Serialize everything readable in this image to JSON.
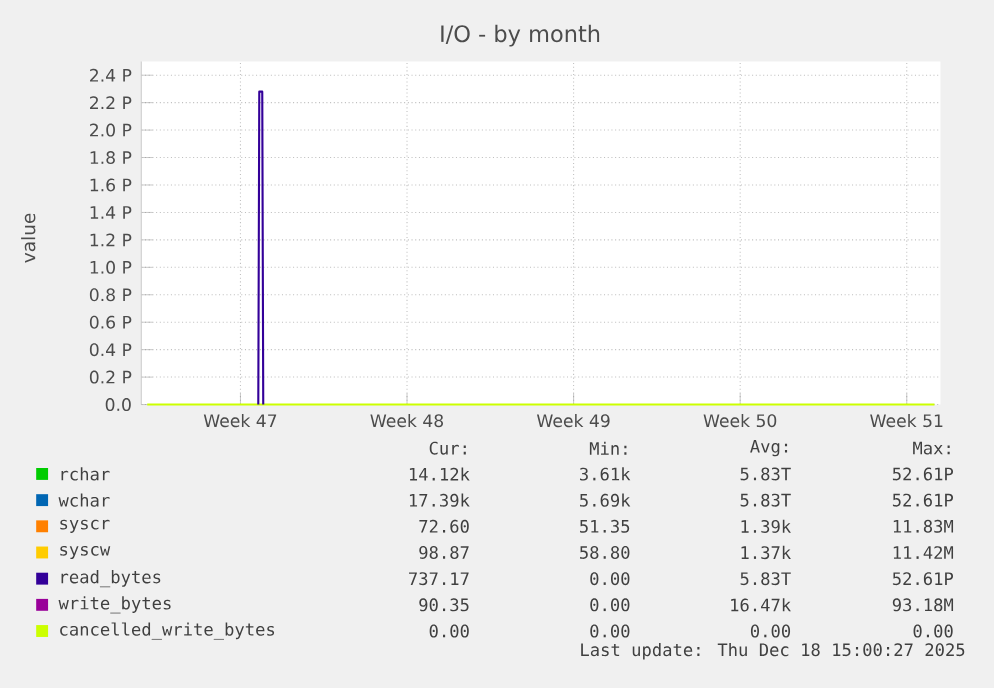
{
  "chart_data": {
    "type": "line",
    "title": "I/O - by month",
    "ylabel": "value",
    "xlim": [
      "2025-11-16T08:00",
      "2025-12-19T22:00"
    ],
    "xticks": [
      {
        "value": "2025-11-20T12:00",
        "label": "Week 47"
      },
      {
        "value": "2025-11-27T12:00",
        "label": "Week 48"
      },
      {
        "value": "2025-12-04T12:00",
        "label": "Week 49"
      },
      {
        "value": "2025-12-11T12:00",
        "label": "Week 50"
      },
      {
        "value": "2025-12-18T12:00",
        "label": "Week 51"
      }
    ],
    "ylim": [
      0,
      2.5
    ],
    "yticks": [
      {
        "value": 0,
        "label": "0.0"
      },
      {
        "value": 0.2,
        "label": "0.2 P"
      },
      {
        "value": 0.4,
        "label": "0.4 P"
      },
      {
        "value": 0.6,
        "label": "0.6 P"
      },
      {
        "value": 0.8,
        "label": "0.8 P"
      },
      {
        "value": 1.0,
        "label": "1.0 P"
      },
      {
        "value": 1.2,
        "label": "1.2 P"
      },
      {
        "value": 1.4,
        "label": "1.4 P"
      },
      {
        "value": 1.6,
        "label": "1.6 P"
      },
      {
        "value": 1.8,
        "label": "1.8 P"
      },
      {
        "value": 2.0,
        "label": "2.0 P"
      },
      {
        "value": 2.2,
        "label": "2.2 P"
      },
      {
        "value": 2.4,
        "label": "2.4 P"
      }
    ],
    "grid": true,
    "legend": "bottom",
    "marker": "none",
    "line_style": "solid",
    "series": [
      {
        "name": "rchar",
        "color": "#00cc00"
      },
      {
        "name": "wchar",
        "color": "#0066b3"
      },
      {
        "name": "syscr",
        "color": "#ff8000"
      },
      {
        "name": "syscw",
        "color": "#ffcc00"
      },
      {
        "name": "read_bytes",
        "color": "#330099",
        "x": [
          "2025-11-21T06:00",
          "2025-11-21T07:00",
          "2025-11-21T10:00",
          "2025-11-21T11:00"
        ],
        "values": [
          0,
          2.28,
          2.28,
          0
        ]
      },
      {
        "name": "write_bytes",
        "color": "#990099"
      },
      {
        "name": "cancelled_write_bytes",
        "color": "#ccff00",
        "x": [
          "2025-11-16T14:00",
          "2025-12-19T16:00"
        ],
        "values": [
          0,
          0
        ]
      }
    ],
    "annotations": [
      "Cur:",
      "Min:",
      "Avg:",
      "Max:",
      "14.12k",
      "3.61k",
      "5.83T",
      "52.61P",
      "17.39k",
      "5.69k",
      "5.83T",
      "52.61P",
      "72.60",
      "51.35",
      "1.39k",
      "11.83M",
      "98.87",
      "58.80",
      "1.37k",
      "11.42M",
      "737.17",
      "0.00",
      "5.83T",
      "52.61P",
      "90.35",
      "0.00",
      "16.47k",
      "93.18M",
      "0.00",
      "0.00",
      "0.00",
      "0.00",
      "Last update: Thu Dec 18 15:00:27 2025"
    ]
  }
}
